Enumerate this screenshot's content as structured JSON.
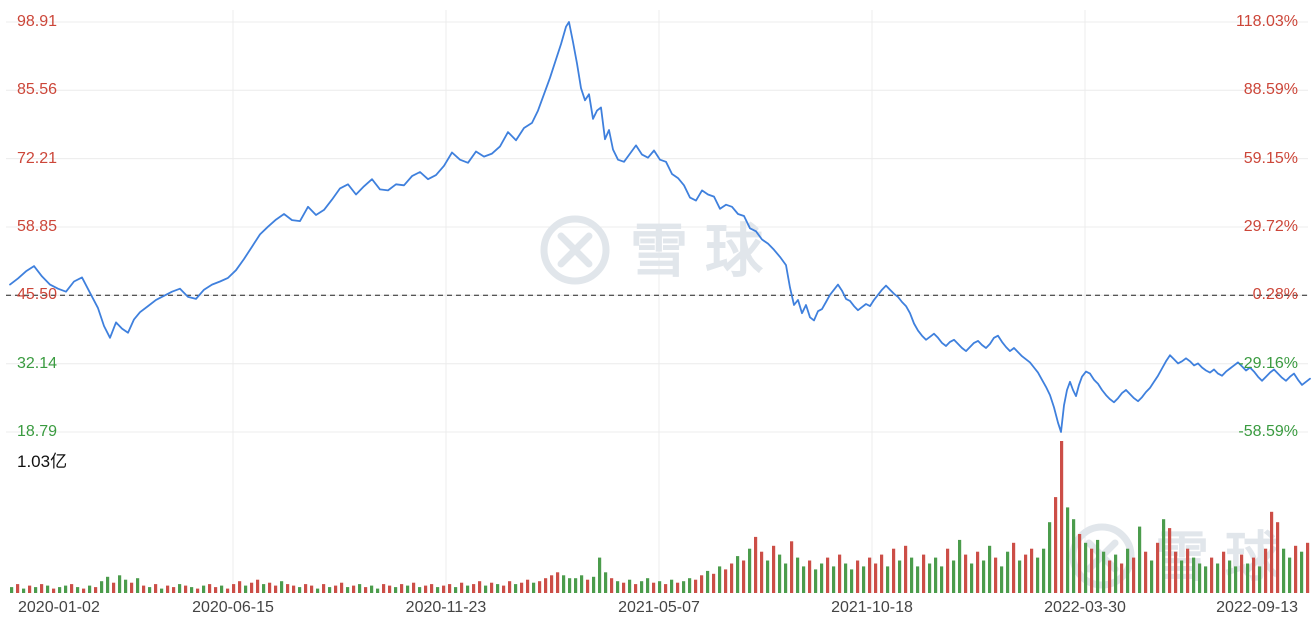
{
  "watermark": {
    "text": "雪球"
  },
  "chart_data": {
    "type": "line",
    "panels": [
      "price",
      "volume"
    ],
    "grid": true,
    "ylim": [
      18.79,
      98.91
    ],
    "x_axis": {
      "labels": [
        "2020-01-02",
        "2020-06-15",
        "2020-11-23",
        "2021-05-07",
        "2021-10-18",
        "2022-03-30",
        "2022-09-13"
      ]
    },
    "price_axis": {
      "labels": [
        "98.91",
        "85.56",
        "72.21",
        "58.85",
        "45.50",
        "32.14",
        "18.79"
      ],
      "values": [
        98.91,
        85.56,
        72.21,
        58.85,
        45.5,
        32.14,
        18.79
      ],
      "colors": [
        "up",
        "up",
        "up",
        "up",
        "up",
        "down",
        "down"
      ]
    },
    "pct_axis": {
      "labels": [
        "118.03%",
        "88.59%",
        "59.15%",
        "29.72%",
        "0.28%",
        "-29.16%",
        "-58.59%"
      ],
      "values": [
        118.03,
        88.59,
        59.15,
        29.72,
        0.28,
        -29.16,
        -58.59
      ],
      "colors": [
        "up",
        "up",
        "up",
        "up",
        "up",
        "down",
        "down"
      ]
    },
    "baseline": {
      "price": 45.5,
      "pct_label": "0.28%",
      "style": "dashed"
    },
    "volume_axis": {
      "max_label": "1.03亿",
      "max_value": 1.03,
      "unit": "亿"
    },
    "colors": {
      "line": "#3f80dd",
      "up": "#cc4e47",
      "down": "#4b9c4c",
      "axis_up_text": "#cc4639",
      "axis_down_text": "#3a9b40",
      "date_text": "#444444",
      "grid": "#ececec",
      "baseline": "#222222",
      "watermark": "#e1e6eb"
    },
    "price_series": [
      [
        10,
        47.6
      ],
      [
        18,
        48.8
      ],
      [
        26,
        50.2
      ],
      [
        34,
        51.2
      ],
      [
        42,
        49.2
      ],
      [
        50,
        47.6
      ],
      [
        58,
        46.8
      ],
      [
        66,
        46.2
      ],
      [
        74,
        48.2
      ],
      [
        82,
        49.0
      ],
      [
        90,
        46.0
      ],
      [
        98,
        43.0
      ],
      [
        104,
        39.5
      ],
      [
        110,
        37.2
      ],
      [
        116,
        40.2
      ],
      [
        122,
        39.0
      ],
      [
        128,
        38.2
      ],
      [
        134,
        40.8
      ],
      [
        140,
        42.2
      ],
      [
        148,
        43.4
      ],
      [
        156,
        44.6
      ],
      [
        164,
        45.4
      ],
      [
        172,
        46.2
      ],
      [
        180,
        46.8
      ],
      [
        188,
        45.2
      ],
      [
        196,
        44.8
      ],
      [
        204,
        46.6
      ],
      [
        212,
        47.6
      ],
      [
        220,
        48.2
      ],
      [
        228,
        48.9
      ],
      [
        236,
        50.4
      ],
      [
        244,
        52.6
      ],
      [
        252,
        55.0
      ],
      [
        260,
        57.4
      ],
      [
        268,
        58.9
      ],
      [
        276,
        60.3
      ],
      [
        284,
        61.4
      ],
      [
        292,
        60.2
      ],
      [
        300,
        60.0
      ],
      [
        308,
        62.8
      ],
      [
        316,
        61.2
      ],
      [
        324,
        62.2
      ],
      [
        332,
        64.2
      ],
      [
        340,
        66.4
      ],
      [
        348,
        67.2
      ],
      [
        356,
        65.2
      ],
      [
        364,
        66.8
      ],
      [
        372,
        68.2
      ],
      [
        380,
        66.2
      ],
      [
        388,
        66.0
      ],
      [
        396,
        67.2
      ],
      [
        404,
        67.0
      ],
      [
        412,
        68.8
      ],
      [
        420,
        69.6
      ],
      [
        428,
        68.2
      ],
      [
        436,
        69.0
      ],
      [
        444,
        70.8
      ],
      [
        452,
        73.4
      ],
      [
        460,
        72.0
      ],
      [
        468,
        71.4
      ],
      [
        476,
        73.6
      ],
      [
        484,
        72.6
      ],
      [
        492,
        73.2
      ],
      [
        500,
        74.6
      ],
      [
        508,
        77.4
      ],
      [
        516,
        75.8
      ],
      [
        524,
        78.2
      ],
      [
        532,
        79.2
      ],
      [
        538,
        81.6
      ],
      [
        544,
        84.8
      ],
      [
        550,
        88.0
      ],
      [
        556,
        91.6
      ],
      [
        561,
        94.6
      ],
      [
        566,
        98.0
      ],
      [
        569,
        98.91
      ],
      [
        573,
        95.0
      ],
      [
        577,
        90.8
      ],
      [
        581,
        86.0
      ],
      [
        585,
        83.6
      ],
      [
        589,
        84.8
      ],
      [
        593,
        80.0
      ],
      [
        597,
        81.6
      ],
      [
        601,
        82.2
      ],
      [
        605,
        76.0
      ],
      [
        609,
        77.8
      ],
      [
        613,
        74.0
      ],
      [
        618,
        72.0
      ],
      [
        624,
        71.6
      ],
      [
        630,
        73.2
      ],
      [
        636,
        74.8
      ],
      [
        642,
        73.0
      ],
      [
        648,
        72.4
      ],
      [
        654,
        73.8
      ],
      [
        660,
        72.0
      ],
      [
        666,
        71.6
      ],
      [
        672,
        69.2
      ],
      [
        678,
        68.4
      ],
      [
        684,
        67.0
      ],
      [
        690,
        64.6
      ],
      [
        696,
        64.0
      ],
      [
        702,
        66.0
      ],
      [
        708,
        65.2
      ],
      [
        714,
        64.8
      ],
      [
        720,
        62.4
      ],
      [
        726,
        63.2
      ],
      [
        732,
        62.8
      ],
      [
        738,
        61.4
      ],
      [
        744,
        61.0
      ],
      [
        750,
        58.6
      ],
      [
        756,
        58.0
      ],
      [
        762,
        56.4
      ],
      [
        768,
        55.6
      ],
      [
        774,
        54.4
      ],
      [
        780,
        53.0
      ],
      [
        786,
        51.4
      ],
      [
        790,
        47.0
      ],
      [
        794,
        43.6
      ],
      [
        798,
        44.6
      ],
      [
        802,
        42.0
      ],
      [
        806,
        43.6
      ],
      [
        810,
        41.2
      ],
      [
        814,
        40.6
      ],
      [
        818,
        42.4
      ],
      [
        822,
        42.8
      ],
      [
        826,
        44.2
      ],
      [
        830,
        45.6
      ],
      [
        834,
        46.6
      ],
      [
        838,
        47.6
      ],
      [
        842,
        46.4
      ],
      [
        846,
        44.8
      ],
      [
        850,
        44.4
      ],
      [
        854,
        43.4
      ],
      [
        858,
        42.6
      ],
      [
        862,
        43.2
      ],
      [
        866,
        43.8
      ],
      [
        870,
        43.4
      ],
      [
        874,
        44.6
      ],
      [
        878,
        45.6
      ],
      [
        882,
        46.6
      ],
      [
        886,
        47.4
      ],
      [
        890,
        46.6
      ],
      [
        894,
        45.8
      ],
      [
        898,
        45.2
      ],
      [
        902,
        44.2
      ],
      [
        906,
        43.4
      ],
      [
        910,
        42.0
      ],
      [
        914,
        40.0
      ],
      [
        918,
        38.6
      ],
      [
        922,
        37.6
      ],
      [
        926,
        36.8
      ],
      [
        930,
        37.4
      ],
      [
        934,
        38.0
      ],
      [
        938,
        37.2
      ],
      [
        942,
        36.2
      ],
      [
        946,
        35.6
      ],
      [
        950,
        36.4
      ],
      [
        954,
        36.8
      ],
      [
        958,
        36.0
      ],
      [
        962,
        35.2
      ],
      [
        966,
        34.6
      ],
      [
        970,
        35.4
      ],
      [
        974,
        36.2
      ],
      [
        978,
        36.6
      ],
      [
        982,
        35.8
      ],
      [
        986,
        35.2
      ],
      [
        990,
        36.0
      ],
      [
        994,
        37.2
      ],
      [
        998,
        37.6
      ],
      [
        1002,
        36.4
      ],
      [
        1006,
        35.4
      ],
      [
        1010,
        34.6
      ],
      [
        1014,
        35.2
      ],
      [
        1018,
        34.4
      ],
      [
        1022,
        33.6
      ],
      [
        1026,
        33.0
      ],
      [
        1030,
        32.4
      ],
      [
        1034,
        31.4
      ],
      [
        1038,
        30.4
      ],
      [
        1042,
        29.0
      ],
      [
        1046,
        27.6
      ],
      [
        1050,
        26.0
      ],
      [
        1054,
        23.6
      ],
      [
        1058,
        20.6
      ],
      [
        1061,
        18.79
      ],
      [
        1064,
        24.0
      ],
      [
        1067,
        27.0
      ],
      [
        1070,
        28.6
      ],
      [
        1073,
        27.0
      ],
      [
        1076,
        25.8
      ],
      [
        1079,
        28.0
      ],
      [
        1082,
        29.6
      ],
      [
        1086,
        30.6
      ],
      [
        1090,
        30.2
      ],
      [
        1094,
        29.0
      ],
      [
        1098,
        28.2
      ],
      [
        1102,
        27.0
      ],
      [
        1106,
        26.0
      ],
      [
        1110,
        25.2
      ],
      [
        1114,
        24.6
      ],
      [
        1118,
        25.4
      ],
      [
        1122,
        26.4
      ],
      [
        1126,
        27.0
      ],
      [
        1130,
        26.2
      ],
      [
        1134,
        25.4
      ],
      [
        1138,
        24.8
      ],
      [
        1142,
        25.6
      ],
      [
        1146,
        26.6
      ],
      [
        1150,
        27.4
      ],
      [
        1154,
        28.6
      ],
      [
        1158,
        29.8
      ],
      [
        1162,
        31.2
      ],
      [
        1166,
        32.6
      ],
      [
        1170,
        33.8
      ],
      [
        1174,
        33.0
      ],
      [
        1178,
        32.2
      ],
      [
        1182,
        32.6
      ],
      [
        1186,
        33.2
      ],
      [
        1190,
        32.6
      ],
      [
        1194,
        31.8
      ],
      [
        1198,
        32.2
      ],
      [
        1202,
        31.4
      ],
      [
        1206,
        30.8
      ],
      [
        1210,
        30.4
      ],
      [
        1214,
        31.0
      ],
      [
        1218,
        30.2
      ],
      [
        1222,
        29.8
      ],
      [
        1226,
        30.6
      ],
      [
        1230,
        31.2
      ],
      [
        1234,
        31.8
      ],
      [
        1238,
        32.4
      ],
      [
        1242,
        31.6
      ],
      [
        1246,
        30.8
      ],
      [
        1250,
        31.4
      ],
      [
        1254,
        30.6
      ],
      [
        1258,
        29.6
      ],
      [
        1262,
        28.8
      ],
      [
        1266,
        29.6
      ],
      [
        1270,
        30.4
      ],
      [
        1274,
        31.0
      ],
      [
        1278,
        30.2
      ],
      [
        1282,
        29.4
      ],
      [
        1286,
        28.8
      ],
      [
        1290,
        29.6
      ],
      [
        1294,
        30.2
      ],
      [
        1298,
        29.0
      ],
      [
        1302,
        28.0
      ],
      [
        1306,
        28.6
      ],
      [
        1310,
        29.2
      ]
    ],
    "volume": {
      "values": [
        0.04,
        0.06,
        0.03,
        0.05,
        0.04,
        0.06,
        0.05,
        0.03,
        0.04,
        0.05,
        0.06,
        0.04,
        0.03,
        0.05,
        0.04,
        0.08,
        0.11,
        0.07,
        0.12,
        0.09,
        0.07,
        0.1,
        0.05,
        0.04,
        0.06,
        0.03,
        0.05,
        0.04,
        0.06,
        0.05,
        0.04,
        0.03,
        0.05,
        0.06,
        0.04,
        0.05,
        0.03,
        0.06,
        0.08,
        0.05,
        0.07,
        0.09,
        0.06,
        0.07,
        0.05,
        0.08,
        0.06,
        0.05,
        0.04,
        0.06,
        0.05,
        0.03,
        0.06,
        0.04,
        0.05,
        0.07,
        0.04,
        0.05,
        0.06,
        0.04,
        0.05,
        0.03,
        0.06,
        0.05,
        0.04,
        0.06,
        0.05,
        0.07,
        0.04,
        0.05,
        0.06,
        0.04,
        0.05,
        0.06,
        0.04,
        0.07,
        0.05,
        0.06,
        0.08,
        0.05,
        0.07,
        0.06,
        0.05,
        0.08,
        0.06,
        0.07,
        0.09,
        0.07,
        0.08,
        0.1,
        0.12,
        0.14,
        0.12,
        0.1,
        0.1,
        0.12,
        0.09,
        0.11,
        0.24,
        0.14,
        0.1,
        0.08,
        0.07,
        0.09,
        0.06,
        0.08,
        0.1,
        0.07,
        0.08,
        0.06,
        0.09,
        0.07,
        0.08,
        0.1,
        0.09,
        0.12,
        0.15,
        0.13,
        0.18,
        0.16,
        0.2,
        0.25,
        0.22,
        0.3,
        0.38,
        0.28,
        0.22,
        0.32,
        0.26,
        0.2,
        0.35,
        0.24,
        0.18,
        0.22,
        0.16,
        0.2,
        0.24,
        0.18,
        0.26,
        0.2,
        0.16,
        0.22,
        0.18,
        0.24,
        0.2,
        0.26,
        0.18,
        0.3,
        0.22,
        0.32,
        0.24,
        0.18,
        0.26,
        0.2,
        0.24,
        0.18,
        0.3,
        0.22,
        0.36,
        0.26,
        0.2,
        0.28,
        0.22,
        0.32,
        0.24,
        0.18,
        0.28,
        0.34,
        0.22,
        0.26,
        0.3,
        0.24,
        0.3,
        0.48,
        0.65,
        1.03,
        0.58,
        0.5,
        0.4,
        0.34,
        0.3,
        0.36,
        0.28,
        0.22,
        0.26,
        0.2,
        0.3,
        0.24,
        0.45,
        0.28,
        0.22,
        0.34,
        0.5,
        0.44,
        0.28,
        0.22,
        0.3,
        0.24,
        0.2,
        0.18,
        0.24,
        0.2,
        0.28,
        0.22,
        0.18,
        0.26,
        0.2,
        0.24,
        0.18,
        0.3,
        0.55,
        0.48,
        0.3,
        0.24,
        0.32,
        0.28,
        0.34
      ],
      "colors": [
        "grgrgrgrggrgrgr",
        "ggrggrg",
        "rgrgrrgrgrgrrgr",
        "rrgrrgrrgr",
        "rgrrgrgrrgrgrggrrgrgrgrrg",
        "rrgrgrrgrgrrgrrgr",
        "rrrgg",
        "ggrgggr",
        "grgrggrgrgrggr",
        "rgrgrrgrgr",
        "rgrggrg",
        "grggrgrggrgr",
        "rrgrgrggrg",
        "ggrggrgrggrggrgrrg",
        "ggrrg",
        "grgrgg",
        "rgrgrgrgrgrrgrgg",
        "grgrggrgrg",
        "rrrg",
        "grgr"
      ]
    }
  }
}
